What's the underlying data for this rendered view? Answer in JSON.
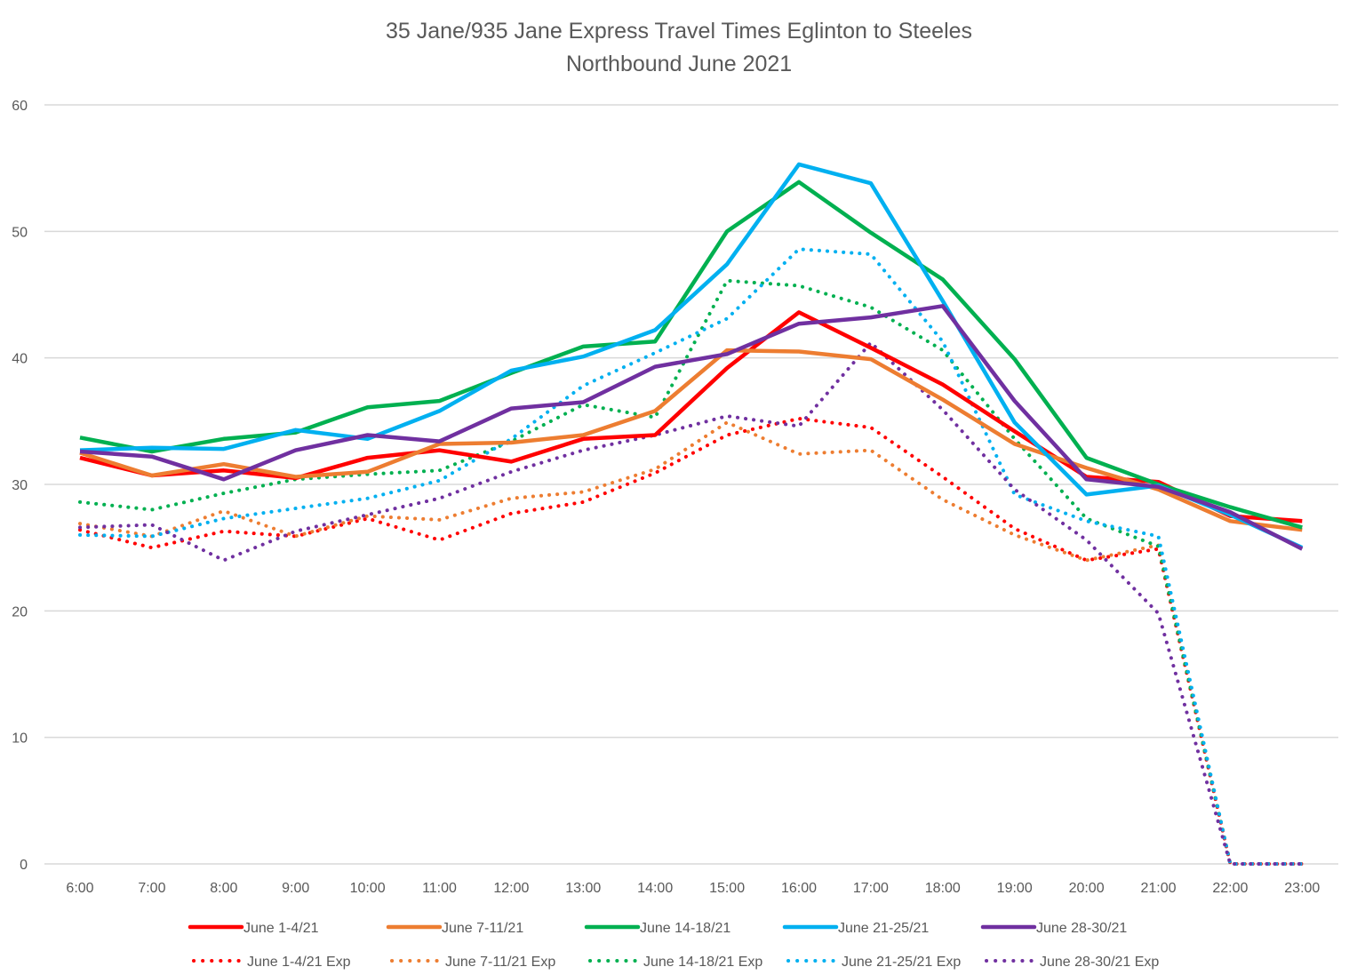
{
  "chart_data": {
    "type": "line",
    "title": "35 Jane/935 Jane Express Travel Times Eglinton to Steeles",
    "subtitle": "Northbound  June 2021",
    "xlabel": "",
    "ylabel": "",
    "ylim": [
      0,
      60
    ],
    "yticks": [
      "0",
      "10",
      "20",
      "30",
      "40",
      "50",
      "60"
    ],
    "grid": true,
    "legend_position": "bottom",
    "categories": [
      "6:00",
      "7:00",
      "8:00",
      "9:00",
      "10:00",
      "11:00",
      "12:00",
      "13:00",
      "14:00",
      "15:00",
      "16:00",
      "17:00",
      "18:00",
      "19:00",
      "20:00",
      "21:00",
      "22:00",
      "23:00"
    ],
    "series": [
      {
        "name": "June 1-4/21",
        "color": "#FF0000",
        "style": "solid",
        "values": [
          32.1,
          30.7,
          31.1,
          30.5,
          32.1,
          32.7,
          31.8,
          33.6,
          33.9,
          39.2,
          43.6,
          40.8,
          37.9,
          34.2,
          30.6,
          30.2,
          27.5,
          27.1
        ]
      },
      {
        "name": "June 7-11/21",
        "color": "#ED7D31",
        "style": "solid",
        "values": [
          32.5,
          30.7,
          31.6,
          30.6,
          31.0,
          33.2,
          33.3,
          33.9,
          35.8,
          40.6,
          40.5,
          39.9,
          36.7,
          33.2,
          31.3,
          29.6,
          27.1,
          26.4
        ]
      },
      {
        "name": "June 14-18/21",
        "color": "#00B050",
        "style": "solid",
        "values": [
          33.7,
          32.6,
          33.6,
          34.1,
          36.1,
          36.6,
          38.8,
          40.9,
          41.3,
          50.0,
          53.9,
          49.9,
          46.2,
          39.9,
          32.1,
          30.0,
          28.2,
          26.6
        ]
      },
      {
        "name": "June 21-25/21",
        "color": "#00B0F0",
        "style": "solid",
        "values": [
          32.7,
          32.9,
          32.8,
          34.3,
          33.6,
          35.8,
          39.0,
          40.1,
          42.2,
          47.4,
          55.3,
          53.8,
          44.5,
          34.9,
          29.2,
          29.9,
          27.6,
          25.0
        ]
      },
      {
        "name": "June 28-30/21",
        "color": "#7030A0",
        "style": "solid",
        "values": [
          32.6,
          32.2,
          30.4,
          32.7,
          33.9,
          33.4,
          36.0,
          36.5,
          39.3,
          40.3,
          42.7,
          43.2,
          44.1,
          36.6,
          30.4,
          29.8,
          27.8,
          24.9
        ]
      },
      {
        "name": "June 1-4/21 Exp",
        "color": "#FF0000",
        "style": "dotted",
        "values": [
          26.4,
          25.0,
          26.3,
          25.9,
          27.3,
          25.6,
          27.7,
          28.6,
          30.9,
          33.9,
          35.2,
          34.5,
          30.6,
          26.5,
          24.0,
          24.9,
          0,
          0
        ]
      },
      {
        "name": "June 7-11/21 Exp",
        "color": "#ED7D31",
        "style": "dotted",
        "values": [
          26.9,
          25.9,
          27.9,
          25.9,
          27.5,
          27.2,
          28.9,
          29.4,
          31.2,
          34.9,
          32.4,
          32.7,
          28.8,
          26.0,
          24.0,
          25.2,
          0,
          0
        ]
      },
      {
        "name": "June 14-18/21 Exp",
        "color": "#00B050",
        "style": "dotted",
        "values": [
          28.6,
          28.0,
          29.3,
          30.4,
          30.8,
          31.1,
          33.4,
          36.3,
          35.3,
          46.1,
          45.7,
          44.0,
          40.6,
          33.6,
          27.3,
          25.1,
          0,
          0
        ]
      },
      {
        "name": "June 21-25/21 Exp",
        "color": "#00B0F0",
        "style": "dotted",
        "values": [
          26.0,
          25.9,
          27.3,
          28.1,
          28.9,
          30.3,
          33.6,
          37.8,
          40.4,
          43.1,
          48.6,
          48.2,
          41.3,
          29.2,
          27.1,
          25.9,
          0,
          0
        ]
      },
      {
        "name": "June 28-30/21 Exp",
        "color": "#7030A0",
        "style": "dotted",
        "values": [
          26.6,
          26.8,
          24.0,
          26.3,
          27.6,
          28.9,
          31.0,
          32.7,
          33.9,
          35.4,
          34.6,
          41.2,
          35.9,
          29.6,
          25.6,
          19.8,
          0,
          0
        ]
      }
    ]
  },
  "colors": {
    "gridline": "#D9D9D9",
    "text": "#595959"
  }
}
